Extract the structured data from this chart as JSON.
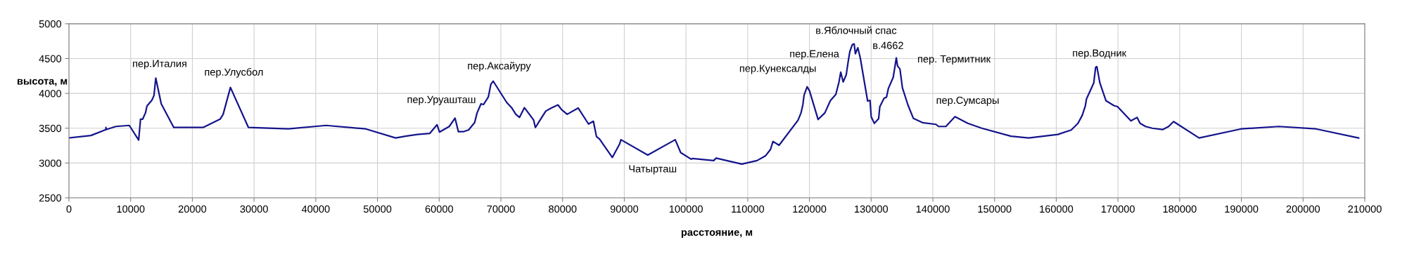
{
  "chart_data": {
    "type": "line",
    "xlabel": "расстояние, м",
    "ylabel": "высота, м",
    "xlim": [
      0,
      210000
    ],
    "ylim": [
      2500,
      5000
    ],
    "xticks": [
      0,
      10000,
      20000,
      30000,
      40000,
      50000,
      60000,
      70000,
      80000,
      90000,
      100000,
      110000,
      120000,
      130000,
      140000,
      150000,
      160000,
      170000,
      180000,
      190000,
      200000,
      210000
    ],
    "yticks": [
      2500,
      3000,
      3500,
      4000,
      4500,
      5000
    ],
    "grid": true,
    "marker": "none",
    "line_style": "solid",
    "series": [
      {
        "color": "#14148c",
        "x": [
          0,
          3560,
          5980,
          6000,
          6010,
          7600,
          9780,
          11300,
          11600,
          11950,
          12400,
          12650,
          12940,
          13430,
          13780,
          14070,
          14960,
          16990,
          21730,
          24500,
          24990,
          26170,
          29090,
          35560,
          41680,
          48100,
          52940,
          54520,
          56490,
          58470,
          59650,
          60050,
          61630,
          62570,
          63110,
          63900,
          64755,
          65745,
          66140,
          66780,
          67180,
          67970,
          68370,
          68760,
          70940,
          71730,
          72420,
          73020,
          73810,
          75290,
          75590,
          77270,
          78160,
          79250,
          79850,
          80740,
          82520,
          84200,
          84990,
          85490,
          85980,
          88060,
          89250,
          89450,
          93800,
          98250,
          99140,
          100830,
          101020,
          104490,
          104880,
          109040,
          111510,
          112900,
          113690,
          114090,
          115080,
          118150,
          118640,
          118940,
          119130,
          119630,
          120020,
          121410,
          122500,
          123390,
          124280,
          124780,
          125070,
          125470,
          125960,
          126260,
          126560,
          126950,
          127250,
          127450,
          127840,
          128240,
          129430,
          129820,
          130020,
          130520,
          131210,
          131410,
          132100,
          132490,
          132790,
          133580,
          134080,
          134280,
          134670,
          135070,
          135960,
          136850,
          138330,
          140510,
          140920,
          142110,
          143590,
          145660,
          147930,
          152660,
          155530,
          160260,
          162430,
          163520,
          164210,
          164700,
          164900,
          166080,
          166380,
          166580,
          167070,
          168060,
          169340,
          169930,
          172100,
          173090,
          173580,
          174470,
          175550,
          177230,
          178220,
          179010,
          183150,
          189960,
          196080,
          202100,
          209000
        ],
        "values": [
          3360,
          3395,
          3480,
          3510,
          3480,
          3525,
          3540,
          3330,
          3630,
          3630,
          3720,
          3820,
          3850,
          3900,
          3970,
          4220,
          3850,
          3510,
          3510,
          3630,
          3700,
          4085,
          3510,
          3490,
          3540,
          3490,
          3360,
          3385,
          3410,
          3425,
          3550,
          3445,
          3525,
          3645,
          3450,
          3450,
          3475,
          3580,
          3720,
          3850,
          3840,
          3950,
          4130,
          4175,
          3870,
          3795,
          3700,
          3655,
          3795,
          3620,
          3510,
          3745,
          3790,
          3835,
          3765,
          3700,
          3790,
          3560,
          3600,
          3380,
          3345,
          3080,
          3275,
          3335,
          3115,
          3335,
          3150,
          3055,
          3065,
          3035,
          3070,
          2985,
          3035,
          3105,
          3195,
          3310,
          3255,
          3615,
          3720,
          3840,
          3975,
          4095,
          4035,
          3625,
          3720,
          3895,
          3985,
          4160,
          4305,
          4165,
          4265,
          4445,
          4605,
          4700,
          4710,
          4570,
          4655,
          4510,
          3890,
          3900,
          3660,
          3570,
          3635,
          3810,
          3930,
          3945,
          4070,
          4230,
          4510,
          4395,
          4350,
          4080,
          3835,
          3640,
          3580,
          3555,
          3525,
          3525,
          3665,
          3570,
          3500,
          3385,
          3360,
          3410,
          3475,
          3570,
          3685,
          3815,
          3920,
          4150,
          4375,
          4385,
          4150,
          3895,
          3825,
          3810,
          3605,
          3655,
          3570,
          3525,
          3500,
          3480,
          3525,
          3595,
          3360,
          3490,
          3525,
          3490,
          3360
        ]
      }
    ],
    "annotations": [
      {
        "text": "пер.Италия",
        "x": 14070,
        "y": 4220
      },
      {
        "text": "пер.Улусбол",
        "x": 26170,
        "y": 4085
      },
      {
        "text": "пер.Уруашташ",
        "x": 59650,
        "y": 3550
      },
      {
        "text": "пер.Аксайуру",
        "x": 68760,
        "y": 4175
      },
      {
        "text": "Чатырташ",
        "x": 93800,
        "y": 3115
      },
      {
        "text": "пер.Кунексалды",
        "x": 119630,
        "y": 4095
      },
      {
        "text": "пер.Елена",
        "x": 125070,
        "y": 4305
      },
      {
        "text": "в.Яблочный спас",
        "x": 127250,
        "y": 4710
      },
      {
        "text": "в.4662",
        "x": 127840,
        "y": 4655
      },
      {
        "text": "пер. Термитник",
        "x": 134080,
        "y": 4510
      },
      {
        "text": "пер.Сумсары",
        "x": 143590,
        "y": 3665
      },
      {
        "text": "пер.Водник",
        "x": 166580,
        "y": 4385
      }
    ]
  }
}
